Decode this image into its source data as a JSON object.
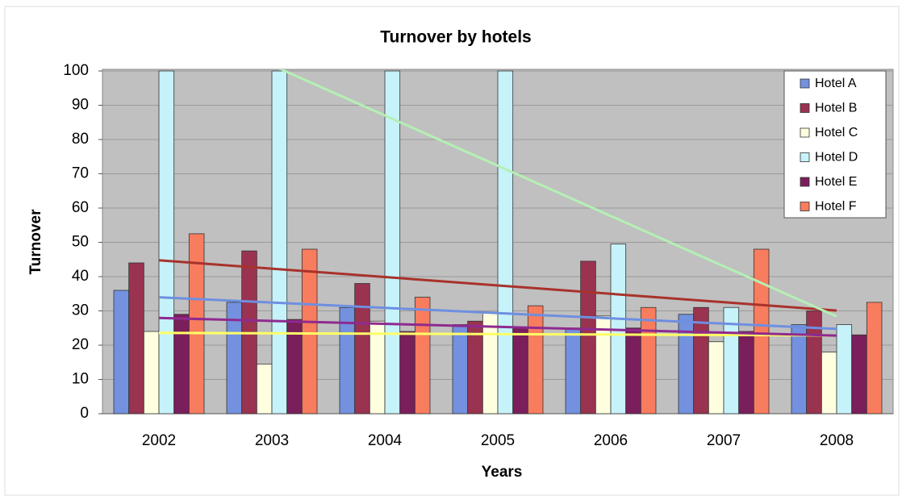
{
  "chart_data": {
    "type": "bar",
    "title": "Turnover by hotels",
    "x_label": "Years",
    "y_label": "Turnover",
    "categories": [
      "2002",
      "2003",
      "2004",
      "2005",
      "2006",
      "2007",
      "2008"
    ],
    "series": [
      {
        "name": "Hotel A",
        "color": "#7391de",
        "trendline_color": "#6e8fe0",
        "trendline": true,
        "values": [
          36,
          32.5,
          31,
          26,
          25,
          29,
          26
        ]
      },
      {
        "name": "Hotel B",
        "color": "#993350",
        "trendline_color": "#a8322b",
        "trendline": true,
        "values": [
          44,
          47.5,
          38,
          27,
          44.5,
          31,
          30
        ]
      },
      {
        "name": "Hotel C",
        "color": "#ffffe0",
        "trendline_color": "#ffff66",
        "trendline": true,
        "values": [
          24,
          14.5,
          27,
          29.5,
          28.5,
          21,
          18
        ]
      },
      {
        "name": "Hotel D",
        "color": "#c6f2fa",
        "trendline_color": "#b4f0b4",
        "trendline": true,
        "values": [
          100,
          100,
          100,
          100,
          49.5,
          31,
          26
        ]
      },
      {
        "name": "Hotel E",
        "color": "#7a1f5c",
        "trendline_color": "#8f2a8f",
        "trendline": true,
        "values": [
          29,
          27.5,
          24,
          25,
          25,
          24,
          23
        ]
      },
      {
        "name": "Hotel F",
        "color": "#f87c5e",
        "trendline": false,
        "values": [
          52.5,
          48,
          34,
          31.5,
          31,
          48,
          32.5
        ]
      }
    ],
    "ylim": [
      0,
      100
    ],
    "yticks": [
      0,
      10,
      20,
      30,
      40,
      50,
      60,
      70,
      80,
      90,
      100
    ],
    "grid": true,
    "legend": "top-right"
  }
}
